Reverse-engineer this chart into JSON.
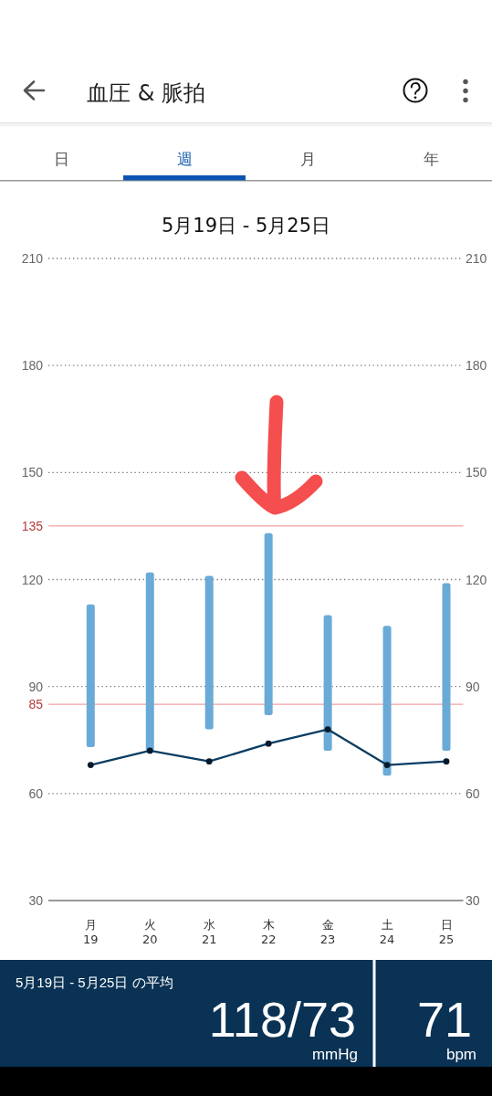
{
  "chart_data": {
    "type": "bar",
    "title": "血圧 & 脈拍",
    "subtitle": "5月19日 - 5月25日",
    "categories": [
      "月\n19",
      "火\n20",
      "水\n21",
      "木\n22",
      "金\n23",
      "土\n24",
      "日\n25"
    ],
    "ylim": [
      30,
      210
    ],
    "yticks": [
      30,
      60,
      90,
      120,
      150,
      180,
      210
    ],
    "y2lim": [
      30,
      210
    ],
    "y2ticks": [
      30,
      60,
      90,
      120,
      150,
      180,
      210
    ],
    "grid": "y",
    "marker": "circle",
    "series": [
      {
        "color": "#6aaad6",
        "base": [
          73,
          72,
          78,
          82,
          72,
          65,
          72
        ],
        "values": [
          40,
          50,
          43,
          51,
          38,
          42,
          47
        ]
      },
      {
        "type": "line",
        "color": "#0b3d62",
        "values": [
          68,
          72,
          69,
          74,
          78,
          68,
          69
        ]
      }
    ],
    "ref_lines": [
      {
        "axis": "y",
        "value": 135,
        "label": "135",
        "color": "#f3a1a1"
      },
      {
        "axis": "y",
        "value": 85,
        "label": "85",
        "color": "#f3a1a1"
      }
    ],
    "annotations": [
      "日",
      "週",
      "月",
      "年",
      "5月19日 - 5月25日 の平均",
      "118/73",
      "mmHg",
      "71",
      "bpm"
    ]
  }
}
